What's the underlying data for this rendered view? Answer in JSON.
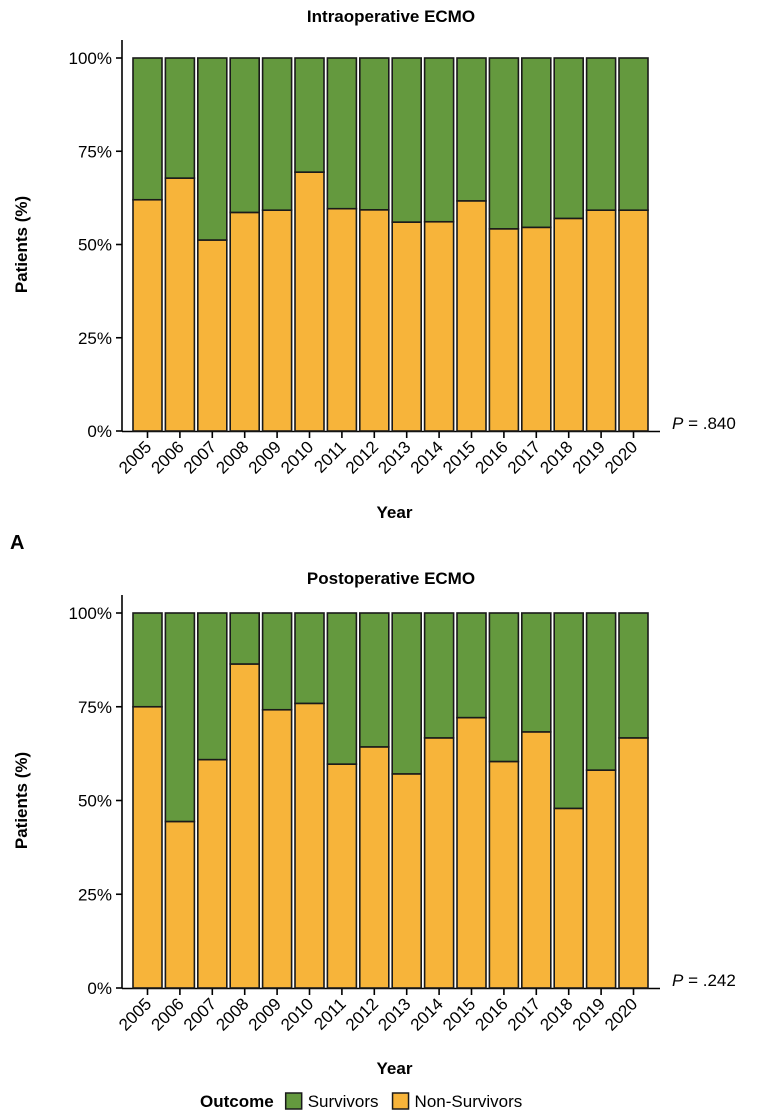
{
  "colors": {
    "survivors": "#64993E",
    "non_survivors": "#F7B43A",
    "stroke": "#1a1a1a"
  },
  "legend": {
    "title": "Outcome",
    "items": [
      {
        "label": "Survivors",
        "color": "#64993E"
      },
      {
        "label": "Non-Survivors",
        "color": "#F7B43A"
      }
    ]
  },
  "chart_data": [
    {
      "type": "bar",
      "stacked": true,
      "title": "Intraoperative ECMO",
      "panel_label": "A",
      "xlabel": "Year",
      "ylabel": "Patients (%)",
      "ylim": [
        0,
        100
      ],
      "yticks": [
        "0%",
        "25%",
        "50%",
        "75%",
        "100%"
      ],
      "categories": [
        "2005",
        "2006",
        "2007",
        "2008",
        "2009",
        "2010",
        "2011",
        "2012",
        "2013",
        "2014",
        "2015",
        "2016",
        "2017",
        "2018",
        "2019",
        "2020"
      ],
      "series": [
        {
          "name": "Non-Survivors",
          "values": [
            62,
            67.8,
            51.2,
            58.6,
            59.2,
            69.4,
            59.6,
            59.3,
            56,
            56.1,
            61.7,
            54.2,
            54.6,
            57,
            59.2,
            59.2
          ]
        },
        {
          "name": "Survivors",
          "values": [
            38,
            32.2,
            48.8,
            41.4,
            40.8,
            30.6,
            40.4,
            40.7,
            44,
            43.9,
            38.3,
            45.8,
            45.4,
            43,
            40.8,
            40.8
          ]
        }
      ],
      "annotation": {
        "italic": "P",
        "text": " = .840"
      }
    },
    {
      "type": "bar",
      "stacked": true,
      "title": "Postoperative ECMO",
      "panel_label": "",
      "xlabel": "Year",
      "ylabel": "Patients (%)",
      "ylim": [
        0,
        100
      ],
      "yticks": [
        "0%",
        "25%",
        "50%",
        "75%",
        "100%"
      ],
      "categories": [
        "2005",
        "2006",
        "2007",
        "2008",
        "2009",
        "2010",
        "2011",
        "2012",
        "2013",
        "2014",
        "2015",
        "2016",
        "2017",
        "2018",
        "2019",
        "2020"
      ],
      "series": [
        {
          "name": "Non-Survivors",
          "values": [
            75,
            44.4,
            60.9,
            86.4,
            74.2,
            75.9,
            59.7,
            64.3,
            57.1,
            66.7,
            72.1,
            60.4,
            68.3,
            47.9,
            58.1,
            66.7
          ]
        },
        {
          "name": "Survivors",
          "values": [
            25,
            55.6,
            39.1,
            13.6,
            25.8,
            24.1,
            40.3,
            35.7,
            42.9,
            33.3,
            27.9,
            39.6,
            31.7,
            52.1,
            41.9,
            33.3
          ]
        }
      ],
      "annotation": {
        "italic": "P",
        "text": " = .242"
      }
    }
  ]
}
